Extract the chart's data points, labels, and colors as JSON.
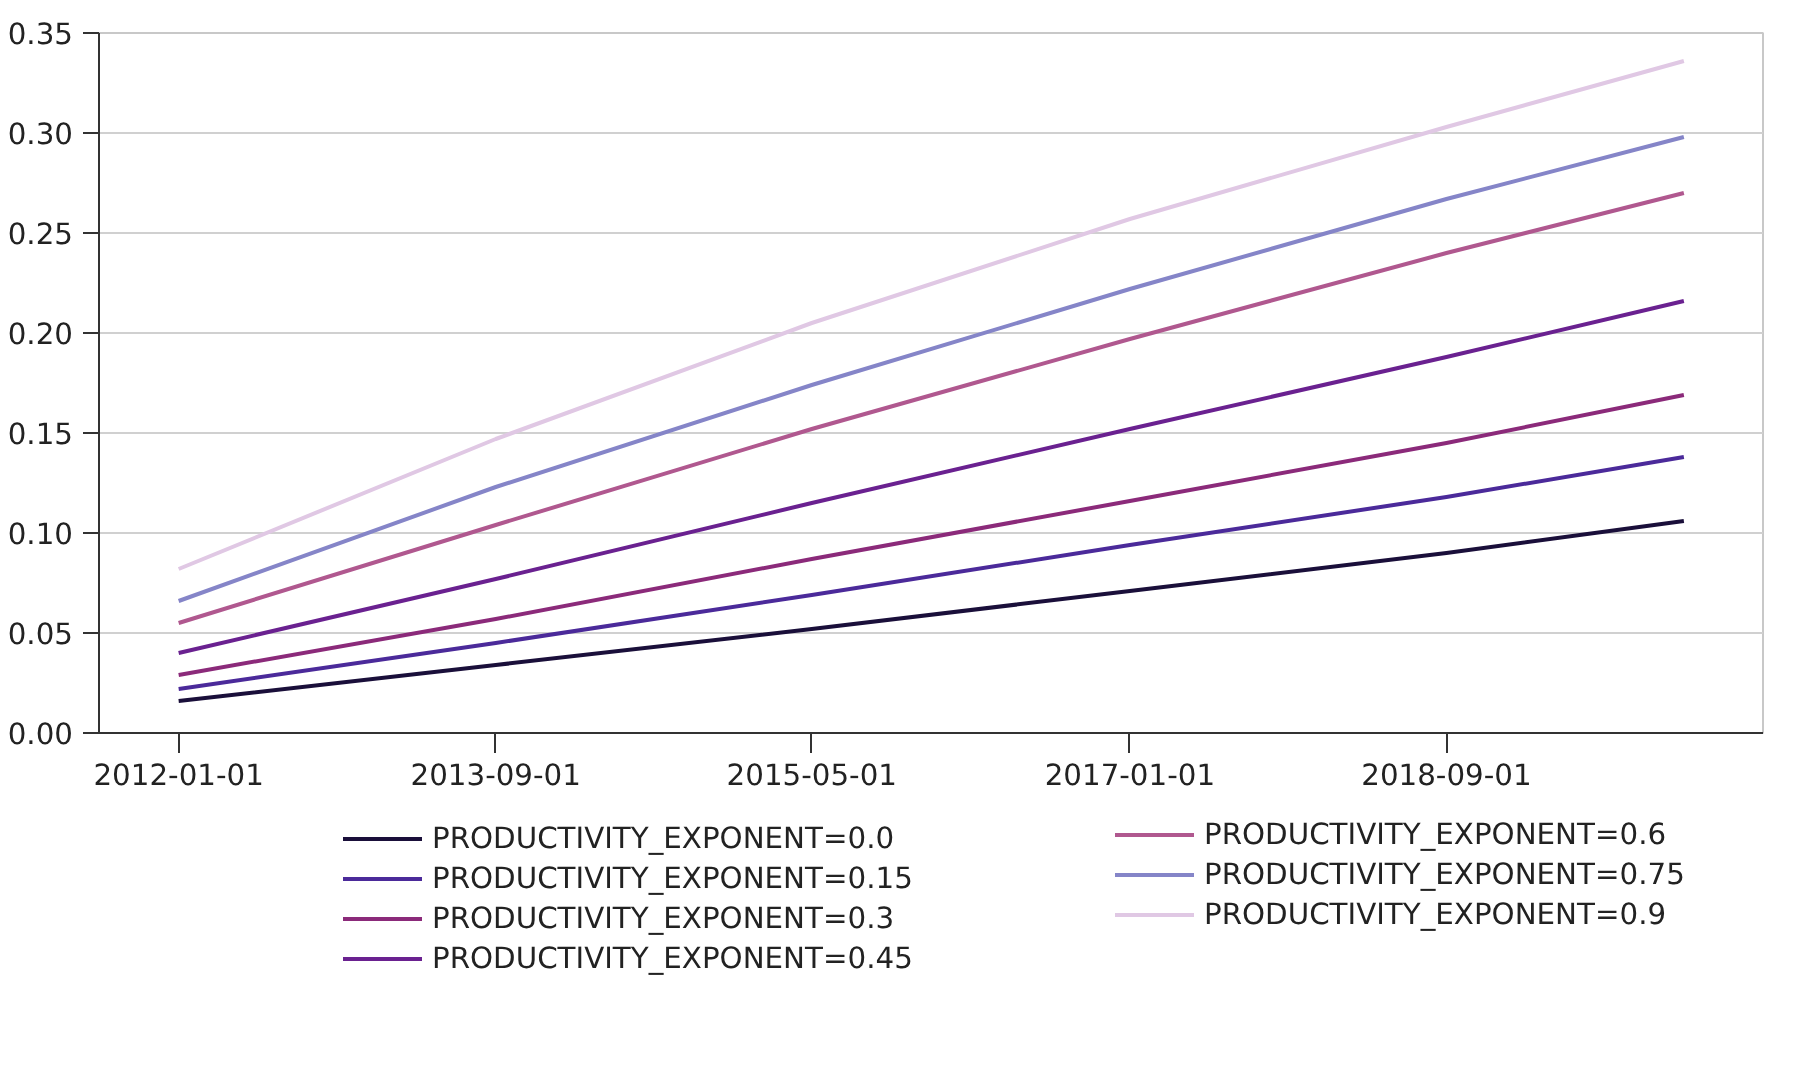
{
  "chart_data": {
    "type": "line",
    "x": [
      "2012-01-01",
      "2013-09-01",
      "2015-05-01",
      "2017-01-01",
      "2018-09-01",
      "2019-12-01"
    ],
    "series": [
      {
        "name": "PRODUCTIVITY_EXPONENT=0.0",
        "color": "#1a0f3a",
        "values": [
          0.016,
          0.034,
          0.052,
          0.071,
          0.09,
          0.106
        ]
      },
      {
        "name": "PRODUCTIVITY_EXPONENT=0.15",
        "color": "#4b2a9a",
        "values": [
          0.022,
          0.045,
          0.069,
          0.094,
          0.118,
          0.138
        ]
      },
      {
        "name": "PRODUCTIVITY_EXPONENT=0.3",
        "color": "#8b2a7a",
        "values": [
          0.029,
          0.057,
          0.087,
          0.116,
          0.145,
          0.169
        ]
      },
      {
        "name": "PRODUCTIVITY_EXPONENT=0.45",
        "color": "#6a2190",
        "values": [
          0.04,
          0.077,
          0.115,
          0.152,
          0.188,
          0.216
        ]
      },
      {
        "name": "PRODUCTIVITY_EXPONENT=0.6",
        "color": "#b0588f",
        "values": [
          0.055,
          0.104,
          0.152,
          0.197,
          0.24,
          0.27
        ]
      },
      {
        "name": "PRODUCTIVITY_EXPONENT=0.75",
        "color": "#8585c8",
        "values": [
          0.066,
          0.123,
          0.174,
          0.222,
          0.267,
          0.298
        ]
      },
      {
        "name": "PRODUCTIVITY_EXPONENT=0.9",
        "color": "#e0c8e4",
        "values": [
          0.082,
          0.147,
          0.205,
          0.257,
          0.303,
          0.336
        ]
      }
    ],
    "xlim": [
      "2011-08-01",
      "2020-05-01"
    ],
    "xticks": [
      "2012-01-01",
      "2013-09-01",
      "2015-05-01",
      "2017-01-01",
      "2018-09-01"
    ],
    "ylim": [
      0,
      0.35
    ],
    "yticks": [
      {
        "value": 0,
        "label": "0.00"
      },
      {
        "value": 0.05,
        "label": "0.05"
      },
      {
        "value": 0.1,
        "label": "0.10"
      },
      {
        "value": 0.15,
        "label": "0.15"
      },
      {
        "value": 0.2,
        "label": "0.20"
      },
      {
        "value": 0.25,
        "label": "0.25"
      },
      {
        "value": 0.3,
        "label": "0.30"
      },
      {
        "value": 0.35,
        "label": "0.35"
      }
    ],
    "grid": "y",
    "legend": "bottom",
    "marker": "none",
    "line_style": "solid"
  }
}
